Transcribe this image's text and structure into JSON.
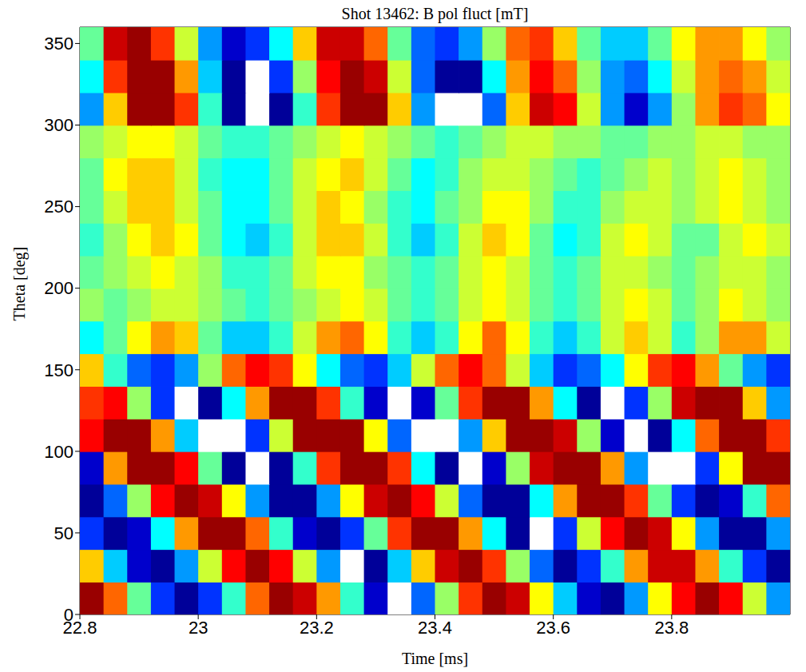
{
  "chart_data": {
    "type": "heatmap",
    "title": "Shot 13462: B pol fluct [mT]",
    "x_label": "Time [ms]",
    "y_label": "Theta [deg]",
    "xlim": [
      22.8,
      24.0
    ],
    "ylim": [
      0,
      360
    ],
    "xticks": [
      22.8,
      23,
      23.2,
      23.4,
      23.6,
      23.8
    ],
    "yticks": [
      0,
      50,
      100,
      150,
      200,
      250,
      300,
      350
    ],
    "zlim": [
      -1,
      1
    ],
    "x": [
      22.82,
      22.86,
      22.9,
      22.94,
      22.98,
      23.02,
      23.06,
      23.1,
      23.14,
      23.18,
      23.22,
      23.26,
      23.3,
      23.34,
      23.38,
      23.42,
      23.46,
      23.5,
      23.54,
      23.58,
      23.62,
      23.66,
      23.7,
      23.74,
      23.78,
      23.82,
      23.86,
      23.9,
      23.94,
      23.98
    ],
    "y": [
      10,
      30,
      50,
      70,
      90,
      110,
      130,
      150,
      170,
      190,
      210,
      230,
      250,
      270,
      290,
      310,
      330,
      350
    ],
    "z": [
      [
        0.9,
        0.5,
        -0.1,
        -0.7,
        -0.9,
        -0.7,
        -0.2,
        0.5,
        0.9,
        0.8,
        0.4,
        -0.2,
        -0.8,
        -1.1,
        -0.6,
        0.0,
        0.6,
        0.9,
        0.8,
        0.2,
        -0.4,
        -0.8,
        -0.9,
        -0.5,
        0.2,
        0.7,
        0.9,
        0.7,
        0.1,
        -0.5
      ],
      [
        0.3,
        -0.4,
        -0.8,
        -0.9,
        -0.5,
        0.1,
        0.7,
        0.9,
        0.7,
        0.1,
        -0.5,
        -1.1,
        -1.0,
        -0.4,
        0.3,
        0.8,
        0.9,
        0.6,
        0.0,
        -0.6,
        -0.9,
        -0.7,
        -0.2,
        0.4,
        0.8,
        0.8,
        0.4,
        -0.2,
        -0.7,
        -0.9
      ],
      [
        -0.7,
        -1.0,
        -0.8,
        -0.3,
        0.4,
        0.9,
        1.0,
        0.5,
        -0.2,
        -0.8,
        -1.0,
        -0.7,
        -0.1,
        0.6,
        1.0,
        0.9,
        0.4,
        -0.3,
        -0.9,
        -1.1,
        -0.7,
        0.1,
        0.7,
        1.0,
        0.8,
        0.2,
        -0.5,
        -0.9,
        -0.9,
        -0.5
      ],
      [
        -1.0,
        -0.6,
        0.0,
        0.7,
        1.0,
        0.8,
        0.2,
        -0.5,
        -0.9,
        -0.9,
        -0.5,
        0.2,
        0.8,
        1.0,
        0.7,
        0.1,
        -0.6,
        -1.0,
        -0.9,
        -0.3,
        0.4,
        0.9,
        1.0,
        0.6,
        -0.1,
        -0.7,
        -1.0,
        -0.8,
        -0.2,
        0.5
      ],
      [
        -0.8,
        0.4,
        1.0,
        1.2,
        0.7,
        -0.1,
        -0.9,
        -1.2,
        -1.0,
        -0.2,
        0.6,
        1.1,
        1.1,
        0.6,
        -0.3,
        -1.0,
        -1.2,
        -0.8,
        0.0,
        0.8,
        1.2,
        1.0,
        0.4,
        -0.5,
        -1.1,
        -1.2,
        -0.7,
        0.2,
        0.9,
        1.2
      ],
      [
        0.7,
        1.2,
        1.0,
        0.4,
        -0.4,
        -1.1,
        -1.2,
        -0.7,
        0.1,
        0.9,
        1.2,
        0.9,
        0.2,
        -0.6,
        -1.1,
        -1.1,
        -0.5,
        0.3,
        1.0,
        1.2,
        0.8,
        0.0,
        -0.8,
        -1.2,
        -1.0,
        -0.3,
        0.5,
        1.1,
        1.1,
        0.6
      ],
      [
        0.6,
        0.7,
        0.0,
        -0.7,
        -1.1,
        -0.9,
        -0.3,
        0.4,
        1.0,
        1.1,
        0.6,
        -0.2,
        -0.8,
        -1.1,
        -0.8,
        -0.1,
        0.6,
        1.1,
        1.0,
        0.4,
        -0.3,
        -0.9,
        -1.1,
        -0.7,
        0.0,
        0.8,
        1.1,
        0.9,
        0.3,
        -0.5
      ],
      [
        0.3,
        -0.2,
        -0.6,
        -0.7,
        -0.5,
        0.0,
        0.5,
        0.7,
        0.6,
        0.2,
        -0.3,
        -0.6,
        -0.7,
        -0.4,
        0.1,
        0.5,
        0.7,
        0.5,
        0.1,
        -0.4,
        -0.7,
        -0.6,
        -0.3,
        0.2,
        0.6,
        0.7,
        0.4,
        -0.1,
        -0.5,
        -0.7
      ],
      [
        -0.3,
        -0.1,
        0.2,
        0.4,
        0.3,
        -0.1,
        -0.4,
        -0.4,
        -0.2,
        0.1,
        0.4,
        0.5,
        0.2,
        -0.2,
        -0.4,
        -0.2,
        0.2,
        0.5,
        0.2,
        -0.2,
        -0.4,
        -0.2,
        0.1,
        0.3,
        0.1,
        -0.2,
        0.0,
        0.4,
        0.4,
        0.1
      ],
      [
        0.0,
        -0.1,
        0.0,
        0.1,
        0.1,
        0.0,
        -0.1,
        -0.2,
        -0.1,
        0.0,
        0.1,
        0.2,
        0.1,
        -0.1,
        -0.2,
        -0.1,
        0.1,
        0.2,
        0.1,
        -0.1,
        -0.2,
        -0.1,
        0.1,
        0.2,
        0.1,
        -0.1,
        0.0,
        0.2,
        0.1,
        0.0
      ],
      [
        -0.1,
        0.0,
        0.1,
        0.2,
        0.1,
        0.0,
        -0.2,
        -0.2,
        -0.1,
        0.1,
        0.2,
        0.2,
        0.0,
        -0.1,
        -0.2,
        -0.1,
        0.1,
        0.2,
        0.1,
        -0.1,
        -0.2,
        -0.1,
        0.1,
        0.1,
        0.0,
        -0.1,
        0.0,
        0.1,
        0.1,
        0.0
      ],
      [
        -0.2,
        0.0,
        0.2,
        0.35,
        0.2,
        -0.1,
        -0.3,
        -0.35,
        -0.2,
        0.1,
        0.3,
        0.35,
        0.1,
        -0.2,
        -0.35,
        -0.2,
        0.1,
        0.35,
        0.2,
        -0.1,
        -0.3,
        -0.2,
        0.1,
        0.25,
        0.1,
        -0.1,
        -0.1,
        0.1,
        0.2,
        0.1
      ],
      [
        -0.1,
        0.1,
        0.3,
        0.3,
        0.1,
        -0.1,
        -0.3,
        -0.3,
        -0.1,
        0.1,
        0.3,
        0.2,
        0.0,
        -0.2,
        -0.3,
        -0.1,
        0.0,
        0.2,
        0.2,
        0.0,
        -0.2,
        -0.2,
        0.0,
        0.1,
        0.1,
        0.0,
        0.1,
        0.2,
        0.1,
        0.0
      ],
      [
        -0.1,
        0.2,
        0.35,
        0.3,
        0.1,
        -0.2,
        -0.3,
        -0.3,
        -0.1,
        0.1,
        0.25,
        0.3,
        0.1,
        -0.1,
        -0.25,
        -0.2,
        0.0,
        0.1,
        0.1,
        0.0,
        -0.1,
        -0.15,
        -0.1,
        0.0,
        0.1,
        0.05,
        0.1,
        0.2,
        0.1,
        0.0
      ],
      [
        0.0,
        0.1,
        0.2,
        0.2,
        0.1,
        -0.1,
        -0.2,
        -0.2,
        -0.1,
        0.0,
        0.1,
        0.2,
        0.1,
        0.0,
        -0.1,
        -0.2,
        -0.1,
        0.0,
        0.1,
        0.1,
        0.0,
        0.0,
        -0.1,
        -0.1,
        0.0,
        0.0,
        0.1,
        0.1,
        0.0,
        0.0
      ],
      [
        -0.5,
        0.3,
        1.1,
        1.1,
        0.6,
        -0.2,
        -0.9,
        -1.3,
        -1.0,
        -0.2,
        0.6,
        1.1,
        1.0,
        0.3,
        -0.5,
        -1.1,
        -1.2,
        -0.6,
        0.3,
        0.8,
        0.7,
        0.1,
        -0.5,
        -0.8,
        -0.5,
        0.0,
        0.4,
        0.6,
        0.5,
        0.2
      ],
      [
        -0.3,
        0.6,
        1.0,
        0.9,
        0.4,
        -0.4,
        -1.0,
        -1.1,
        -0.7,
        0.0,
        0.7,
        1.0,
        0.8,
        0.1,
        -0.6,
        -1.0,
        -0.9,
        -0.3,
        0.4,
        0.7,
        0.5,
        0.0,
        -0.5,
        -0.6,
        -0.3,
        0.1,
        0.4,
        0.5,
        0.4,
        0.1
      ],
      [
        -0.1,
        0.8,
        0.9,
        0.6,
        0.1,
        -0.5,
        -0.8,
        -0.7,
        -0.3,
        0.3,
        0.8,
        0.8,
        0.5,
        -0.1,
        -0.6,
        -0.7,
        -0.5,
        0.0,
        0.5,
        0.6,
        0.3,
        -0.1,
        -0.4,
        -0.4,
        -0.1,
        0.2,
        0.4,
        0.4,
        0.2,
        0.0
      ]
    ]
  }
}
